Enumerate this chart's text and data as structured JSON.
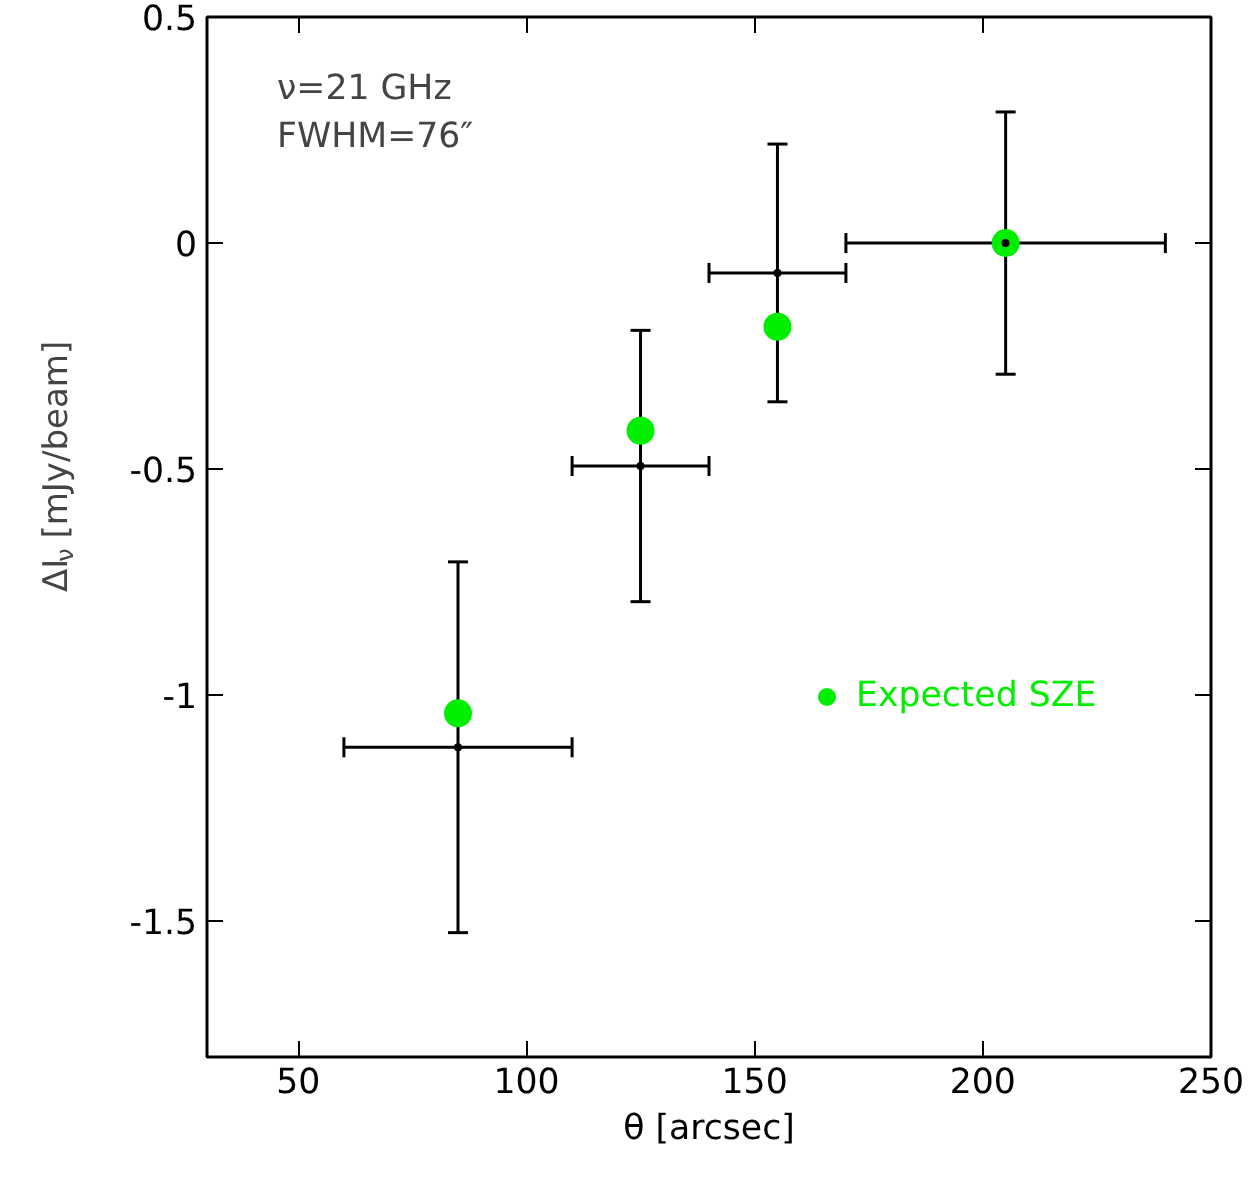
{
  "chart_data": {
    "type": "scatter",
    "xlabel": "θ [arcsec]",
    "ylabel": "ΔI$_{ν}$ [mJy/beam]",
    "annotations": [
      "ν=21 GHz",
      "FWHM=76″"
    ],
    "x": [
      85,
      125,
      155,
      205
    ],
    "series": [
      {
        "color": "#000000",
        "marker": "none",
        "values": [
          -1.115,
          -0.493,
          -0.066,
          0.0
        ],
        "errors": [
          0.41,
          0.3,
          0.285,
          0.29
        ],
        "xerrors": [
          25,
          15,
          15,
          35
        ]
      },
      {
        "name": "Expected SZE",
        "color": "#00ee00",
        "marker": "circle",
        "values": [
          -1.04,
          -0.415,
          -0.185,
          0.0
        ]
      }
    ],
    "xlim": [
      30,
      250
    ],
    "ylim": [
      -1.8,
      0.5
    ],
    "xticks": [
      50,
      100,
      150,
      200,
      250
    ],
    "yticks": [
      -1.5,
      -1,
      -0.5,
      0,
      0.5
    ],
    "grid": false,
    "legend": "right"
  }
}
